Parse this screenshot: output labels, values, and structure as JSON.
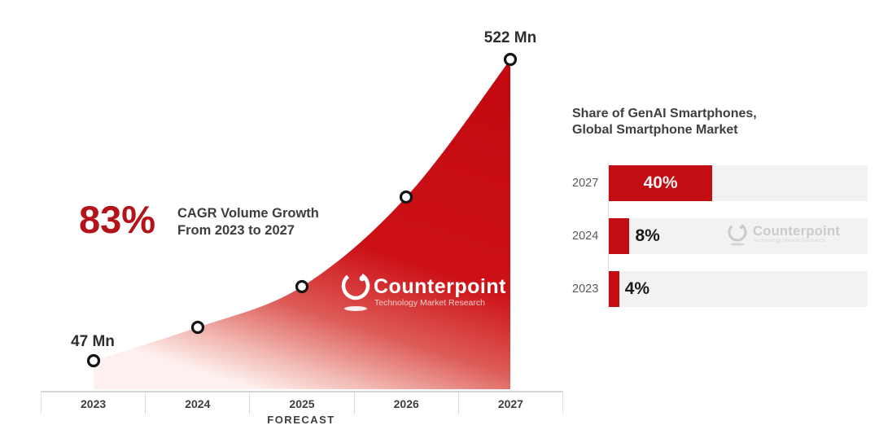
{
  "colors": {
    "area_red_top": "#c40a10",
    "area_red_mid": "#cc1016",
    "area_fade": "#fdf0ee",
    "bar_red": "#c20d13",
    "accent_red": "#b3141a",
    "dark_text": "#3d3d3d",
    "gray_year_label": "#5a5a5a",
    "track_gray": "#f2f2f2",
    "axis_line": "#d6d6d6",
    "watermark_gray": "#cbcbcb"
  },
  "left_chart": {
    "annotation": {
      "big_value": "83%",
      "line1": "CAGR Volume Growth",
      "line2": "From 2023 to 2027"
    },
    "point_labels": {
      "first": "47 Mn",
      "last": "522 Mn"
    },
    "x_axis": {
      "labels": [
        "2023",
        "2024",
        "2025",
        "2026",
        "2027"
      ],
      "caption": "FORECAST"
    },
    "logo": {
      "name": "Counterpoint",
      "tagline": "Technology Market Research"
    }
  },
  "right_chart": {
    "title_line1": "Share of GenAI Smartphones,",
    "title_line2": "Global Smartphone Market",
    "rows": [
      {
        "year": "2027",
        "label": "40%",
        "value_pct": 40
      },
      {
        "year": "2024",
        "label": "8%",
        "value_pct": 8
      },
      {
        "year": "2023",
        "label": "4%",
        "value_pct": 4
      }
    ],
    "watermark": {
      "name": "Counterpoint",
      "tagline": "Technology Market Research"
    }
  },
  "chart_data": [
    {
      "type": "area",
      "x": [
        "2023",
        "2024",
        "2025",
        "2026",
        "2027"
      ],
      "values": [
        47,
        100,
        165,
        305,
        522
      ],
      "values_note": "Only endpoints are labeled in pixels: 2023 = 47 Mn, 2027 = 522 Mn; intermediate values estimated from marker heights",
      "unit": "Mn",
      "point_labels": {
        "2023": "47 Mn",
        "2027": "522 Mn"
      },
      "annotation": "83% CAGR Volume Growth From 2023 to 2027",
      "xlabel": "FORECAST",
      "ylim": [
        0,
        560
      ],
      "grid": false,
      "legend": false
    },
    {
      "type": "bar",
      "orientation": "horizontal",
      "title": "Share of GenAI Smartphones, Global Smartphone Market",
      "categories": [
        "2027",
        "2024",
        "2023"
      ],
      "values": [
        40,
        8,
        4
      ],
      "unit": "%",
      "xlim": [
        0,
        100
      ],
      "grid": false,
      "legend": false
    }
  ]
}
